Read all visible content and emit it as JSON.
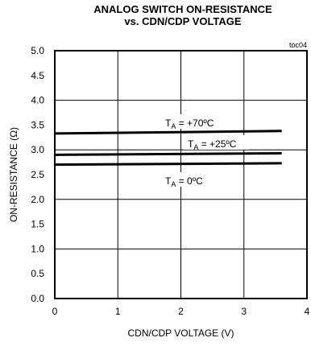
{
  "chart_data": {
    "type": "line",
    "title": [
      "ANALOG SWITCH ON-RESISTANCE",
      "vs. CDN/CDP VOLTAGE"
    ],
    "id_label": "toc04",
    "xlabel": "CDN/CDP VOLTAGE (V)",
    "ylabel": "ON-RESISTANCE (Ω)",
    "xlim": [
      0,
      4
    ],
    "ylim": [
      0,
      5.0
    ],
    "x_ticks": [
      "0",
      "1",
      "2",
      "3",
      "4"
    ],
    "y_ticks": [
      "0.0",
      "0.5",
      "1.0",
      "1.5",
      "2.0",
      "2.5",
      "3.0",
      "3.5",
      "4.0",
      "4.5",
      "5.0"
    ],
    "grid": true,
    "series": [
      {
        "name_prefix": "T",
        "name_sub": "A",
        "name_suffix": " = +70ºC",
        "x": [
          0,
          3.6
        ],
        "y": [
          3.33,
          3.38
        ]
      },
      {
        "name_prefix": "T",
        "name_sub": "A",
        "name_suffix": " = +25ºC",
        "x": [
          0,
          3.6
        ],
        "y": [
          2.9,
          2.93
        ]
      },
      {
        "name_prefix": "T",
        "name_sub": "A",
        "name_suffix": " = 0ºC",
        "x": [
          0,
          3.6
        ],
        "y": [
          2.7,
          2.73
        ]
      }
    ]
  }
}
